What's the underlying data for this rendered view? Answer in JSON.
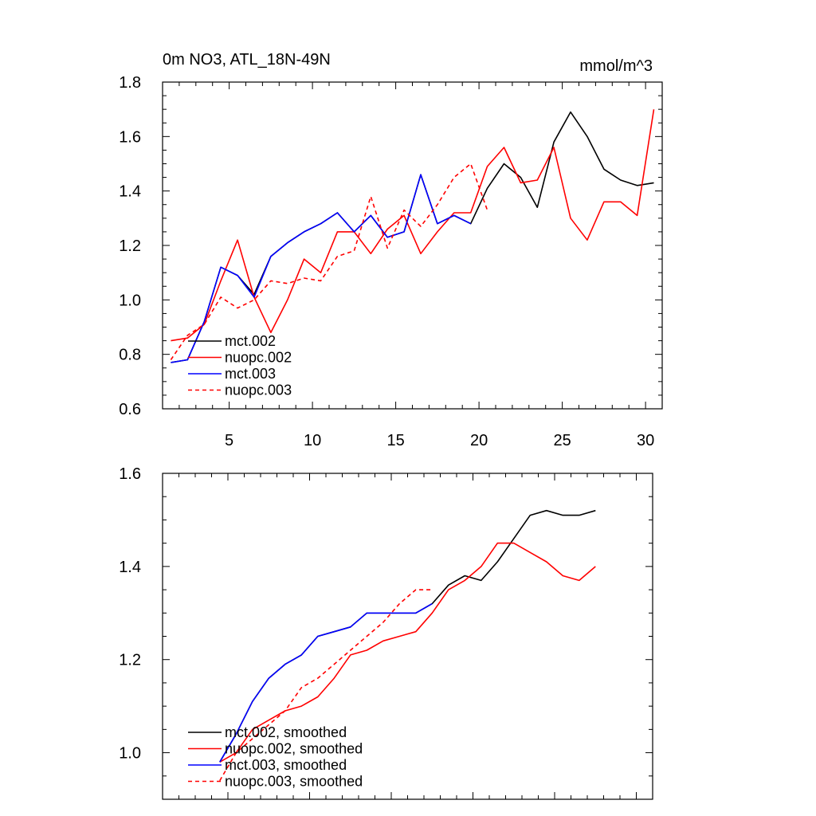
{
  "chart_data": [
    {
      "type": "line",
      "title": "0m NO3, ATL_18N-49N",
      "units": "mmol/m^3",
      "xlim": [
        1,
        31
      ],
      "ylim": [
        0.6,
        1.8
      ],
      "xticks": [
        5,
        10,
        15,
        20,
        25,
        30
      ],
      "xtick_labels": [
        "5",
        "10",
        "15",
        "20",
        "25",
        "30"
      ],
      "yticks": [
        0.6,
        0.8,
        1.0,
        1.2,
        1.4,
        1.6,
        1.8
      ],
      "ytick_labels": [
        "0.6",
        "0.8",
        "1.0",
        "1.2",
        "1.4",
        "1.6",
        "1.8"
      ],
      "legend_position": "bottom-left",
      "series": [
        {
          "name": "mct.002",
          "color": "#000000",
          "dash": "solid",
          "x": [
            1.5,
            2.5,
            3.5,
            4.5,
            5.5,
            6.5,
            7.5,
            8.5,
            9.5,
            10.5,
            11.5,
            12.5,
            13.5,
            14.5,
            15.5,
            16.5,
            17.5,
            18.5,
            19.5,
            20.5,
            21.5,
            22.5,
            23.5,
            24.5,
            25.5,
            26.5,
            27.5,
            28.5,
            29.5,
            30.5
          ],
          "y": [
            0.77,
            0.78,
            0.92,
            1.12,
            1.09,
            1.02,
            1.16,
            1.21,
            1.25,
            1.28,
            1.32,
            1.25,
            1.31,
            1.23,
            1.25,
            1.46,
            1.28,
            1.31,
            1.28,
            1.41,
            1.5,
            1.45,
            1.34,
            1.58,
            1.69,
            1.6,
            1.48,
            1.44,
            1.42,
            1.43
          ]
        },
        {
          "name": "nuopc.002",
          "color": "#ff0000",
          "dash": "solid",
          "x": [
            1.5,
            2.5,
            3.5,
            4.5,
            5.5,
            6.5,
            7.5,
            8.5,
            9.5,
            10.5,
            11.5,
            12.5,
            13.5,
            14.5,
            15.5,
            16.5,
            17.5,
            18.5,
            19.5,
            20.5,
            21.5,
            22.5,
            23.5,
            24.5,
            25.5,
            26.5,
            27.5,
            28.5,
            29.5,
            30.5
          ],
          "y": [
            0.85,
            0.86,
            0.91,
            1.07,
            1.22,
            1.01,
            0.88,
            1.0,
            1.15,
            1.1,
            1.25,
            1.25,
            1.17,
            1.26,
            1.31,
            1.17,
            1.25,
            1.32,
            1.32,
            1.49,
            1.56,
            1.43,
            1.44,
            1.56,
            1.3,
            1.22,
            1.36,
            1.36,
            1.31,
            1.7
          ]
        },
        {
          "name": "mct.003",
          "color": "#0000ff",
          "dash": "solid",
          "x": [
            1.5,
            2.5,
            3.5,
            4.5,
            5.5,
            6.5,
            7.5,
            8.5,
            9.5,
            10.5,
            11.5,
            12.5,
            13.5,
            14.5,
            15.5,
            16.5,
            17.5,
            18.5,
            19.5
          ],
          "y": [
            0.77,
            0.78,
            0.92,
            1.12,
            1.09,
            1.01,
            1.16,
            1.21,
            1.25,
            1.28,
            1.32,
            1.25,
            1.31,
            1.23,
            1.25,
            1.46,
            1.28,
            1.31,
            1.28
          ]
        },
        {
          "name": "nuopc.003",
          "color": "#ff0000",
          "dash": "dashed",
          "x": [
            1.5,
            2.5,
            3.5,
            4.5,
            5.5,
            6.5,
            7.5,
            8.5,
            9.5,
            10.5,
            11.5,
            12.5,
            13.5,
            14.5,
            15.5,
            16.5,
            17.5,
            18.5,
            19.5,
            20.5
          ],
          "y": [
            0.78,
            0.87,
            0.91,
            1.01,
            0.97,
            1.0,
            1.07,
            1.06,
            1.08,
            1.07,
            1.16,
            1.18,
            1.38,
            1.19,
            1.33,
            1.27,
            1.35,
            1.45,
            1.5,
            1.33
          ]
        }
      ]
    },
    {
      "type": "line",
      "xlim": [
        1,
        31
      ],
      "ylim": [
        0.9,
        1.6
      ],
      "yticks": [
        1.0,
        1.2,
        1.4,
        1.6
      ],
      "ytick_labels": [
        "1.0",
        "1.2",
        "1.4",
        "1.6"
      ],
      "xticks": [
        5,
        10,
        15,
        20,
        25,
        30
      ],
      "legend_position": "bottom-left",
      "series": [
        {
          "name": "mct.002, smoothed",
          "color": "#000000",
          "dash": "solid",
          "x": [
            4.5,
            5.5,
            6.5,
            7.5,
            8.5,
            9.5,
            10.5,
            11.5,
            12.5,
            13.5,
            14.5,
            15.5,
            16.5,
            17.5,
            18.5,
            19.5,
            20.5,
            21.5,
            22.5,
            23.5,
            24.5,
            25.5,
            26.5,
            27.5
          ],
          "y": [
            0.98,
            1.04,
            1.11,
            1.16,
            1.19,
            1.21,
            1.25,
            1.26,
            1.27,
            1.3,
            1.3,
            1.3,
            1.3,
            1.32,
            1.36,
            1.38,
            1.37,
            1.41,
            1.46,
            1.51,
            1.52,
            1.51,
            1.51,
            1.52
          ]
        },
        {
          "name": "nuopc.002, smoothed",
          "color": "#ff0000",
          "dash": "solid",
          "x": [
            4.5,
            5.5,
            6.5,
            7.5,
            8.5,
            9.5,
            10.5,
            11.5,
            12.5,
            13.5,
            14.5,
            15.5,
            16.5,
            17.5,
            18.5,
            19.5,
            20.5,
            21.5,
            22.5,
            23.5,
            24.5,
            25.5,
            26.5,
            27.5
          ],
          "y": [
            0.98,
            1.0,
            1.05,
            1.07,
            1.09,
            1.1,
            1.12,
            1.16,
            1.21,
            1.22,
            1.24,
            1.25,
            1.26,
            1.3,
            1.35,
            1.37,
            1.4,
            1.45,
            1.45,
            1.43,
            1.41,
            1.38,
            1.37,
            1.4
          ]
        },
        {
          "name": "mct.003, smoothed",
          "color": "#0000ff",
          "dash": "solid",
          "x": [
            4.5,
            5.5,
            6.5,
            7.5,
            8.5,
            9.5,
            10.5,
            11.5,
            12.5,
            13.5,
            14.5,
            15.5,
            16.5,
            17.5
          ],
          "y": [
            0.98,
            1.04,
            1.11,
            1.16,
            1.19,
            1.21,
            1.25,
            1.26,
            1.27,
            1.3,
            1.3,
            1.3,
            1.3,
            1.32
          ]
        },
        {
          "name": "nuopc.003, smoothed",
          "color": "#ff0000",
          "dash": "dashed",
          "x": [
            4.5,
            5.5,
            6.5,
            7.5,
            8.5,
            9.5,
            10.5,
            11.5,
            12.5,
            13.5,
            14.5,
            15.5,
            16.5,
            17.5
          ],
          "y": [
            0.94,
            1.0,
            1.03,
            1.06,
            1.09,
            1.14,
            1.16,
            1.19,
            1.22,
            1.25,
            1.28,
            1.32,
            1.35,
            1.35
          ]
        }
      ]
    }
  ]
}
